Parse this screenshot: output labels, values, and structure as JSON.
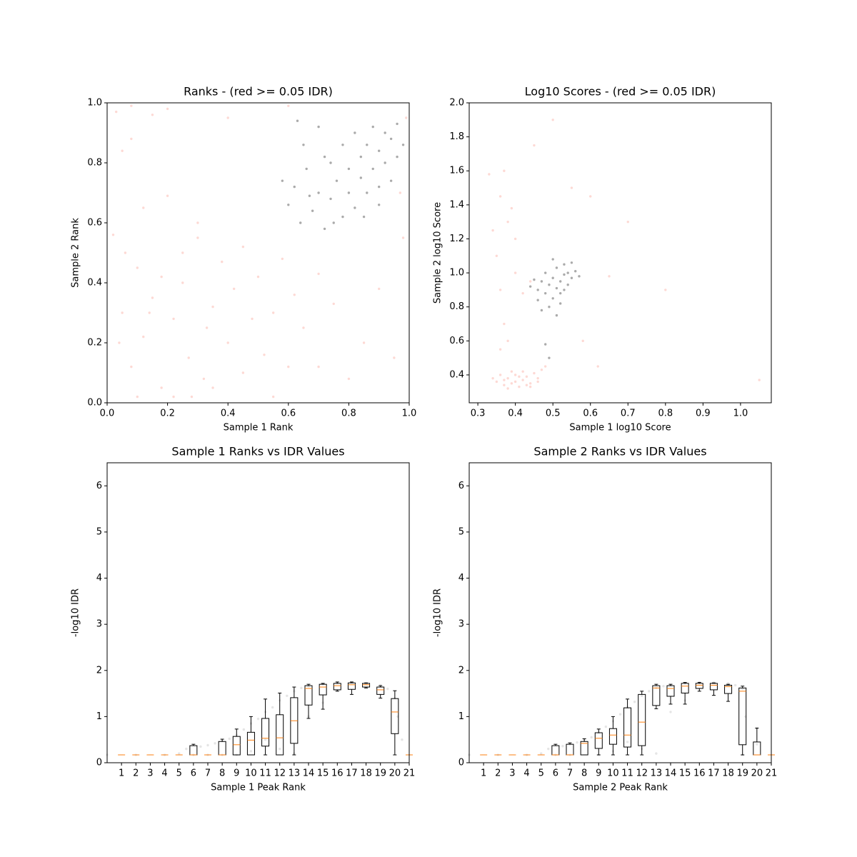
{
  "chart_data": [
    {
      "type": "scatter",
      "title": "Ranks - (red >= 0.05 IDR)",
      "xlabel": "Sample 1 Rank",
      "ylabel": "Sample 2 Rank",
      "xlim": [
        0,
        1
      ],
      "ylim": [
        0,
        1
      ],
      "xticks": [
        {
          "value": 0,
          "label": "0.0"
        },
        0.2,
        0.4,
        0.6,
        0.8,
        {
          "value": 1,
          "label": "1.0"
        }
      ],
      "yticks": [
        {
          "value": 0,
          "label": "0.0"
        },
        0.2,
        0.4,
        0.6,
        0.8,
        {
          "value": 1,
          "label": "1.0"
        }
      ],
      "series": [
        {
          "color": "#fa8072",
          "x": [
            0.02,
            0.05,
            0.08,
            0.1,
            0.12,
            0.15,
            0.18,
            0.2,
            0.22,
            0.25,
            0.27,
            0.3,
            0.32,
            0.35,
            0.38,
            0.4,
            0.42,
            0.45,
            0.48,
            0.5,
            0.52,
            0.55,
            0.58,
            0.6,
            0.62,
            0.65,
            0.7,
            0.75,
            0.8,
            0.85,
            0.9,
            0.95,
            0.98,
            0.03,
            0.08,
            0.15,
            0.2,
            0.05,
            0.08,
            0.3,
            0.25,
            0.12,
            0.06,
            0.35,
            0.45,
            0.28,
            0.18,
            0.1,
            0.4,
            0.6,
            0.99,
            0.97,
            0.55,
            0.7,
            0.22,
            0.33,
            0.14,
            0.04
          ],
          "y": [
            0.56,
            0.3,
            0.12,
            0.45,
            0.22,
            0.35,
            0.05,
            0.69,
            0.28,
            0.4,
            0.15,
            0.55,
            0.08,
            0.32,
            0.47,
            0.2,
            0.38,
            0.1,
            0.28,
            0.42,
            0.16,
            0.3,
            0.48,
            0.12,
            0.36,
            0.25,
            0.43,
            0.33,
            0.08,
            0.2,
            0.38,
            0.15,
            0.55,
            0.97,
            0.99,
            0.96,
            0.98,
            0.84,
            0.88,
            0.6,
            0.5,
            0.65,
            0.5,
            0.05,
            0.52,
            0.02,
            0.42,
            0.02,
            0.95,
            0.99,
            0.95,
            0.7,
            0.02,
            0.12,
            0.02,
            0.25,
            0.3,
            0.2
          ]
        },
        {
          "color": "#555555",
          "x": [
            0.6,
            0.62,
            0.64,
            0.66,
            0.68,
            0.7,
            0.72,
            0.72,
            0.74,
            0.76,
            0.78,
            0.78,
            0.8,
            0.8,
            0.82,
            0.82,
            0.84,
            0.84,
            0.86,
            0.86,
            0.88,
            0.88,
            0.9,
            0.9,
            0.92,
            0.92,
            0.94,
            0.94,
            0.96,
            0.96,
            0.98,
            0.7,
            0.65,
            0.58,
            0.67,
            0.75,
            0.85,
            0.63,
            0.74,
            0.9
          ],
          "y": [
            0.66,
            0.72,
            0.6,
            0.78,
            0.64,
            0.7,
            0.82,
            0.58,
            0.68,
            0.74,
            0.62,
            0.86,
            0.7,
            0.78,
            0.65,
            0.9,
            0.75,
            0.82,
            0.7,
            0.86,
            0.78,
            0.92,
            0.84,
            0.66,
            0.8,
            0.9,
            0.74,
            0.88,
            0.82,
            0.93,
            0.86,
            0.92,
            0.86,
            0.74,
            0.69,
            0.6,
            0.62,
            0.94,
            0.8,
            0.72
          ]
        }
      ]
    },
    {
      "type": "scatter",
      "title": "Log10 Scores - (red >= 0.05 IDR)",
      "xlabel": "Sample 1 log10 Score",
      "ylabel": "Sample 2 log10 Score",
      "xlim": [
        0.277,
        1.082
      ],
      "ylim": [
        0.236,
        2.0
      ],
      "xticks": [
        0.3,
        0.4,
        0.5,
        0.6,
        0.7,
        0.8,
        0.9,
        {
          "value": 1,
          "label": "1.0"
        }
      ],
      "yticks": [
        0.4,
        0.6,
        0.8,
        {
          "value": 1,
          "label": "1.0"
        },
        1.2,
        1.4,
        1.6,
        1.8,
        {
          "value": 2,
          "label": "2.0"
        }
      ],
      "series": [
        {
          "color": "#fa8072",
          "x": [
            0.35,
            0.37,
            0.38,
            0.39,
            0.4,
            0.41,
            0.42,
            0.43,
            0.44,
            0.45,
            0.46,
            0.47,
            0.36,
            0.38,
            0.4,
            0.42,
            0.44,
            0.39,
            0.41,
            0.43,
            0.37,
            0.46,
            0.48,
            0.34,
            0.36,
            0.37,
            0.38,
            0.35,
            0.36,
            0.37,
            0.38,
            0.34,
            0.33,
            0.39,
            0.4,
            0.42,
            0.44,
            0.36,
            0.4,
            0.55,
            0.6,
            0.5,
            0.45,
            0.62,
            0.7,
            1.05,
            0.8,
            0.58,
            0.65
          ],
          "y": [
            0.36,
            0.34,
            0.38,
            0.35,
            0.4,
            0.33,
            0.37,
            0.39,
            0.35,
            0.41,
            0.38,
            0.43,
            0.4,
            0.32,
            0.36,
            0.42,
            0.33,
            0.42,
            0.39,
            0.34,
            0.37,
            0.36,
            0.45,
            0.38,
            1.45,
            1.6,
            1.3,
            1.1,
            0.9,
            0.7,
            0.6,
            1.25,
            1.58,
            1.38,
            1.0,
            0.88,
            0.95,
            0.55,
            1.2,
            1.5,
            1.45,
            1.9,
            1.75,
            0.45,
            1.3,
            0.37,
            0.9,
            0.6,
            0.98
          ]
        },
        {
          "color": "#555555",
          "x": [
            0.46,
            0.47,
            0.48,
            0.48,
            0.49,
            0.5,
            0.5,
            0.51,
            0.51,
            0.52,
            0.52,
            0.53,
            0.53,
            0.54,
            0.54,
            0.55,
            0.55,
            0.56,
            0.49,
            0.47,
            0.46,
            0.5,
            0.45,
            0.57,
            0.52,
            0.48,
            0.49,
            0.51,
            0.44,
            0.53
          ],
          "y": [
            0.9,
            0.95,
            0.88,
            1.0,
            0.93,
            0.85,
            0.97,
            0.91,
            1.03,
            0.95,
            0.88,
            0.99,
            1.05,
            0.93,
            1.0,
            0.97,
            1.06,
            1.01,
            0.8,
            0.78,
            0.84,
            1.08,
            0.96,
            0.98,
            0.82,
            0.58,
            0.5,
            0.75,
            0.92,
            0.9
          ]
        }
      ]
    },
    {
      "type": "box",
      "title": "Sample 1 Ranks vs IDR Values",
      "xlabel": "Sample 1 Peak Rank",
      "ylabel": "-log10 IDR",
      "xlim": [
        0,
        21
      ],
      "ylim": [
        0,
        6.5
      ],
      "xticks": [
        1,
        2,
        3,
        4,
        5,
        6,
        7,
        8,
        9,
        10,
        11,
        12,
        13,
        14,
        15,
        16,
        17,
        18,
        19,
        20,
        21
      ],
      "yticks": [
        0,
        1,
        2,
        3,
        4,
        5,
        6
      ],
      "x": [
        1,
        2,
        3,
        4,
        5,
        6,
        7,
        8,
        9,
        10,
        11,
        12,
        13,
        14,
        15,
        16,
        17,
        18,
        19,
        20,
        21
      ],
      "whislo": [
        0.17,
        0.17,
        0.17,
        0.17,
        0.17,
        0.17,
        0.17,
        0.17,
        0.17,
        0.17,
        0.17,
        0.17,
        0.17,
        0.96,
        1.16,
        1.55,
        1.48,
        1.62,
        1.4,
        0.17,
        0.17
      ],
      "q1": [
        0.17,
        0.17,
        0.17,
        0.17,
        0.17,
        0.17,
        0.17,
        0.17,
        0.17,
        0.17,
        0.36,
        0.17,
        0.42,
        1.25,
        1.47,
        1.58,
        1.59,
        1.64,
        1.48,
        0.63,
        0.17
      ],
      "median": [
        0.17,
        0.17,
        0.17,
        0.17,
        0.17,
        0.17,
        0.17,
        0.17,
        0.39,
        0.49,
        0.53,
        0.54,
        0.91,
        1.61,
        1.64,
        1.67,
        1.69,
        1.69,
        1.58,
        1.1,
        0.17
      ],
      "q3": [
        0.17,
        0.17,
        0.17,
        0.17,
        0.17,
        0.37,
        0.17,
        0.46,
        0.57,
        0.66,
        0.96,
        1.04,
        1.41,
        1.67,
        1.7,
        1.72,
        1.73,
        1.72,
        1.64,
        1.39,
        0.17
      ],
      "whishi": [
        0.17,
        0.17,
        0.17,
        0.17,
        0.17,
        0.4,
        0.17,
        0.51,
        0.73,
        1.0,
        1.38,
        1.51,
        1.64,
        1.7,
        1.72,
        1.75,
        1.75,
        1.73,
        1.67,
        1.56,
        0.17
      ],
      "points": {
        "color": "#999999",
        "x": [
          0,
          2,
          4,
          5,
          5.5,
          6.5,
          7,
          7.5,
          8,
          8.5,
          9,
          9.5,
          10,
          10.5,
          11,
          11.5,
          12,
          12.5,
          13,
          13.5,
          14,
          15,
          16,
          17,
          18,
          19,
          19.5,
          20,
          20.2,
          20.5,
          11,
          12,
          13,
          14,
          15,
          9,
          10,
          6,
          7,
          8
        ],
        "y": [
          0.17,
          0.17,
          0.17,
          0.2,
          0.3,
          0.35,
          0.38,
          0.42,
          0.47,
          0.52,
          0.6,
          0.72,
          0.85,
          0.95,
          1.1,
          1.2,
          1.35,
          1.45,
          1.55,
          1.62,
          1.66,
          1.7,
          1.73,
          1.74,
          1.72,
          1.68,
          1.6,
          1.4,
          1.0,
          0.5,
          0.5,
          0.3,
          0.2,
          1.0,
          1.3,
          0.17,
          0.25,
          0.17,
          0.17,
          0.17
        ]
      }
    },
    {
      "type": "box",
      "title": "Sample 2 Ranks vs IDR Values",
      "xlabel": "Sample 2 Peak Rank",
      "ylabel": "-log10 IDR",
      "xlim": [
        0,
        21
      ],
      "ylim": [
        0,
        6.5
      ],
      "xticks": [
        1,
        2,
        3,
        4,
        5,
        6,
        7,
        8,
        9,
        10,
        11,
        12,
        13,
        14,
        15,
        16,
        17,
        18,
        19,
        20,
        21
      ],
      "yticks": [
        0,
        1,
        2,
        3,
        4,
        5,
        6
      ],
      "x": [
        1,
        2,
        3,
        4,
        5,
        6,
        7,
        8,
        9,
        10,
        11,
        12,
        13,
        14,
        15,
        16,
        17,
        18,
        19,
        20,
        21
      ],
      "whislo": [
        0.17,
        0.17,
        0.17,
        0.17,
        0.17,
        0.17,
        0.17,
        0.17,
        0.17,
        0.17,
        0.17,
        0.17,
        1.17,
        1.27,
        1.27,
        1.55,
        1.46,
        1.33,
        0.17,
        0.17,
        0.17
      ],
      "q1": [
        0.17,
        0.17,
        0.17,
        0.17,
        0.17,
        0.17,
        0.17,
        0.17,
        0.31,
        0.4,
        0.34,
        0.37,
        1.24,
        1.44,
        1.51,
        1.61,
        1.58,
        1.5,
        0.39,
        0.17,
        0.17
      ],
      "median": [
        0.17,
        0.17,
        0.17,
        0.17,
        0.17,
        0.17,
        0.17,
        0.42,
        0.53,
        0.6,
        0.6,
        0.88,
        1.62,
        1.61,
        1.66,
        1.68,
        1.68,
        1.65,
        1.55,
        0.17,
        0.17
      ],
      "q3": [
        0.17,
        0.17,
        0.17,
        0.17,
        0.17,
        0.37,
        0.4,
        0.46,
        0.65,
        0.74,
        1.19,
        1.48,
        1.67,
        1.67,
        1.72,
        1.72,
        1.72,
        1.68,
        1.62,
        0.45,
        0.17
      ],
      "whishi": [
        0.17,
        0.17,
        0.17,
        0.17,
        0.17,
        0.4,
        0.43,
        0.52,
        0.73,
        1.0,
        1.38,
        1.55,
        1.7,
        1.7,
        1.74,
        1.74,
        1.73,
        1.7,
        1.66,
        0.75,
        0.17
      ],
      "points": {
        "color": "#999999",
        "x": [
          0,
          2,
          4,
          5,
          5.5,
          6.5,
          7,
          7.5,
          8,
          8.5,
          9,
          9.5,
          10,
          10.5,
          11,
          11.5,
          12,
          12.5,
          13,
          13.5,
          14,
          15,
          16,
          17,
          18,
          18.5,
          19,
          19,
          19.2,
          20,
          20,
          11,
          12,
          13,
          14,
          15,
          9,
          10,
          6,
          7
        ],
        "y": [
          0.17,
          0.17,
          0.17,
          0.2,
          0.3,
          0.36,
          0.4,
          0.44,
          0.5,
          0.55,
          0.65,
          0.78,
          0.9,
          1.05,
          1.2,
          1.32,
          1.45,
          1.55,
          1.62,
          1.66,
          1.68,
          1.72,
          1.74,
          1.74,
          1.72,
          1.68,
          1.6,
          0.17,
          1.0,
          0.75,
          0.4,
          0.45,
          0.3,
          0.2,
          1.1,
          1.35,
          0.17,
          0.25,
          0.17,
          0.17
        ]
      }
    }
  ]
}
